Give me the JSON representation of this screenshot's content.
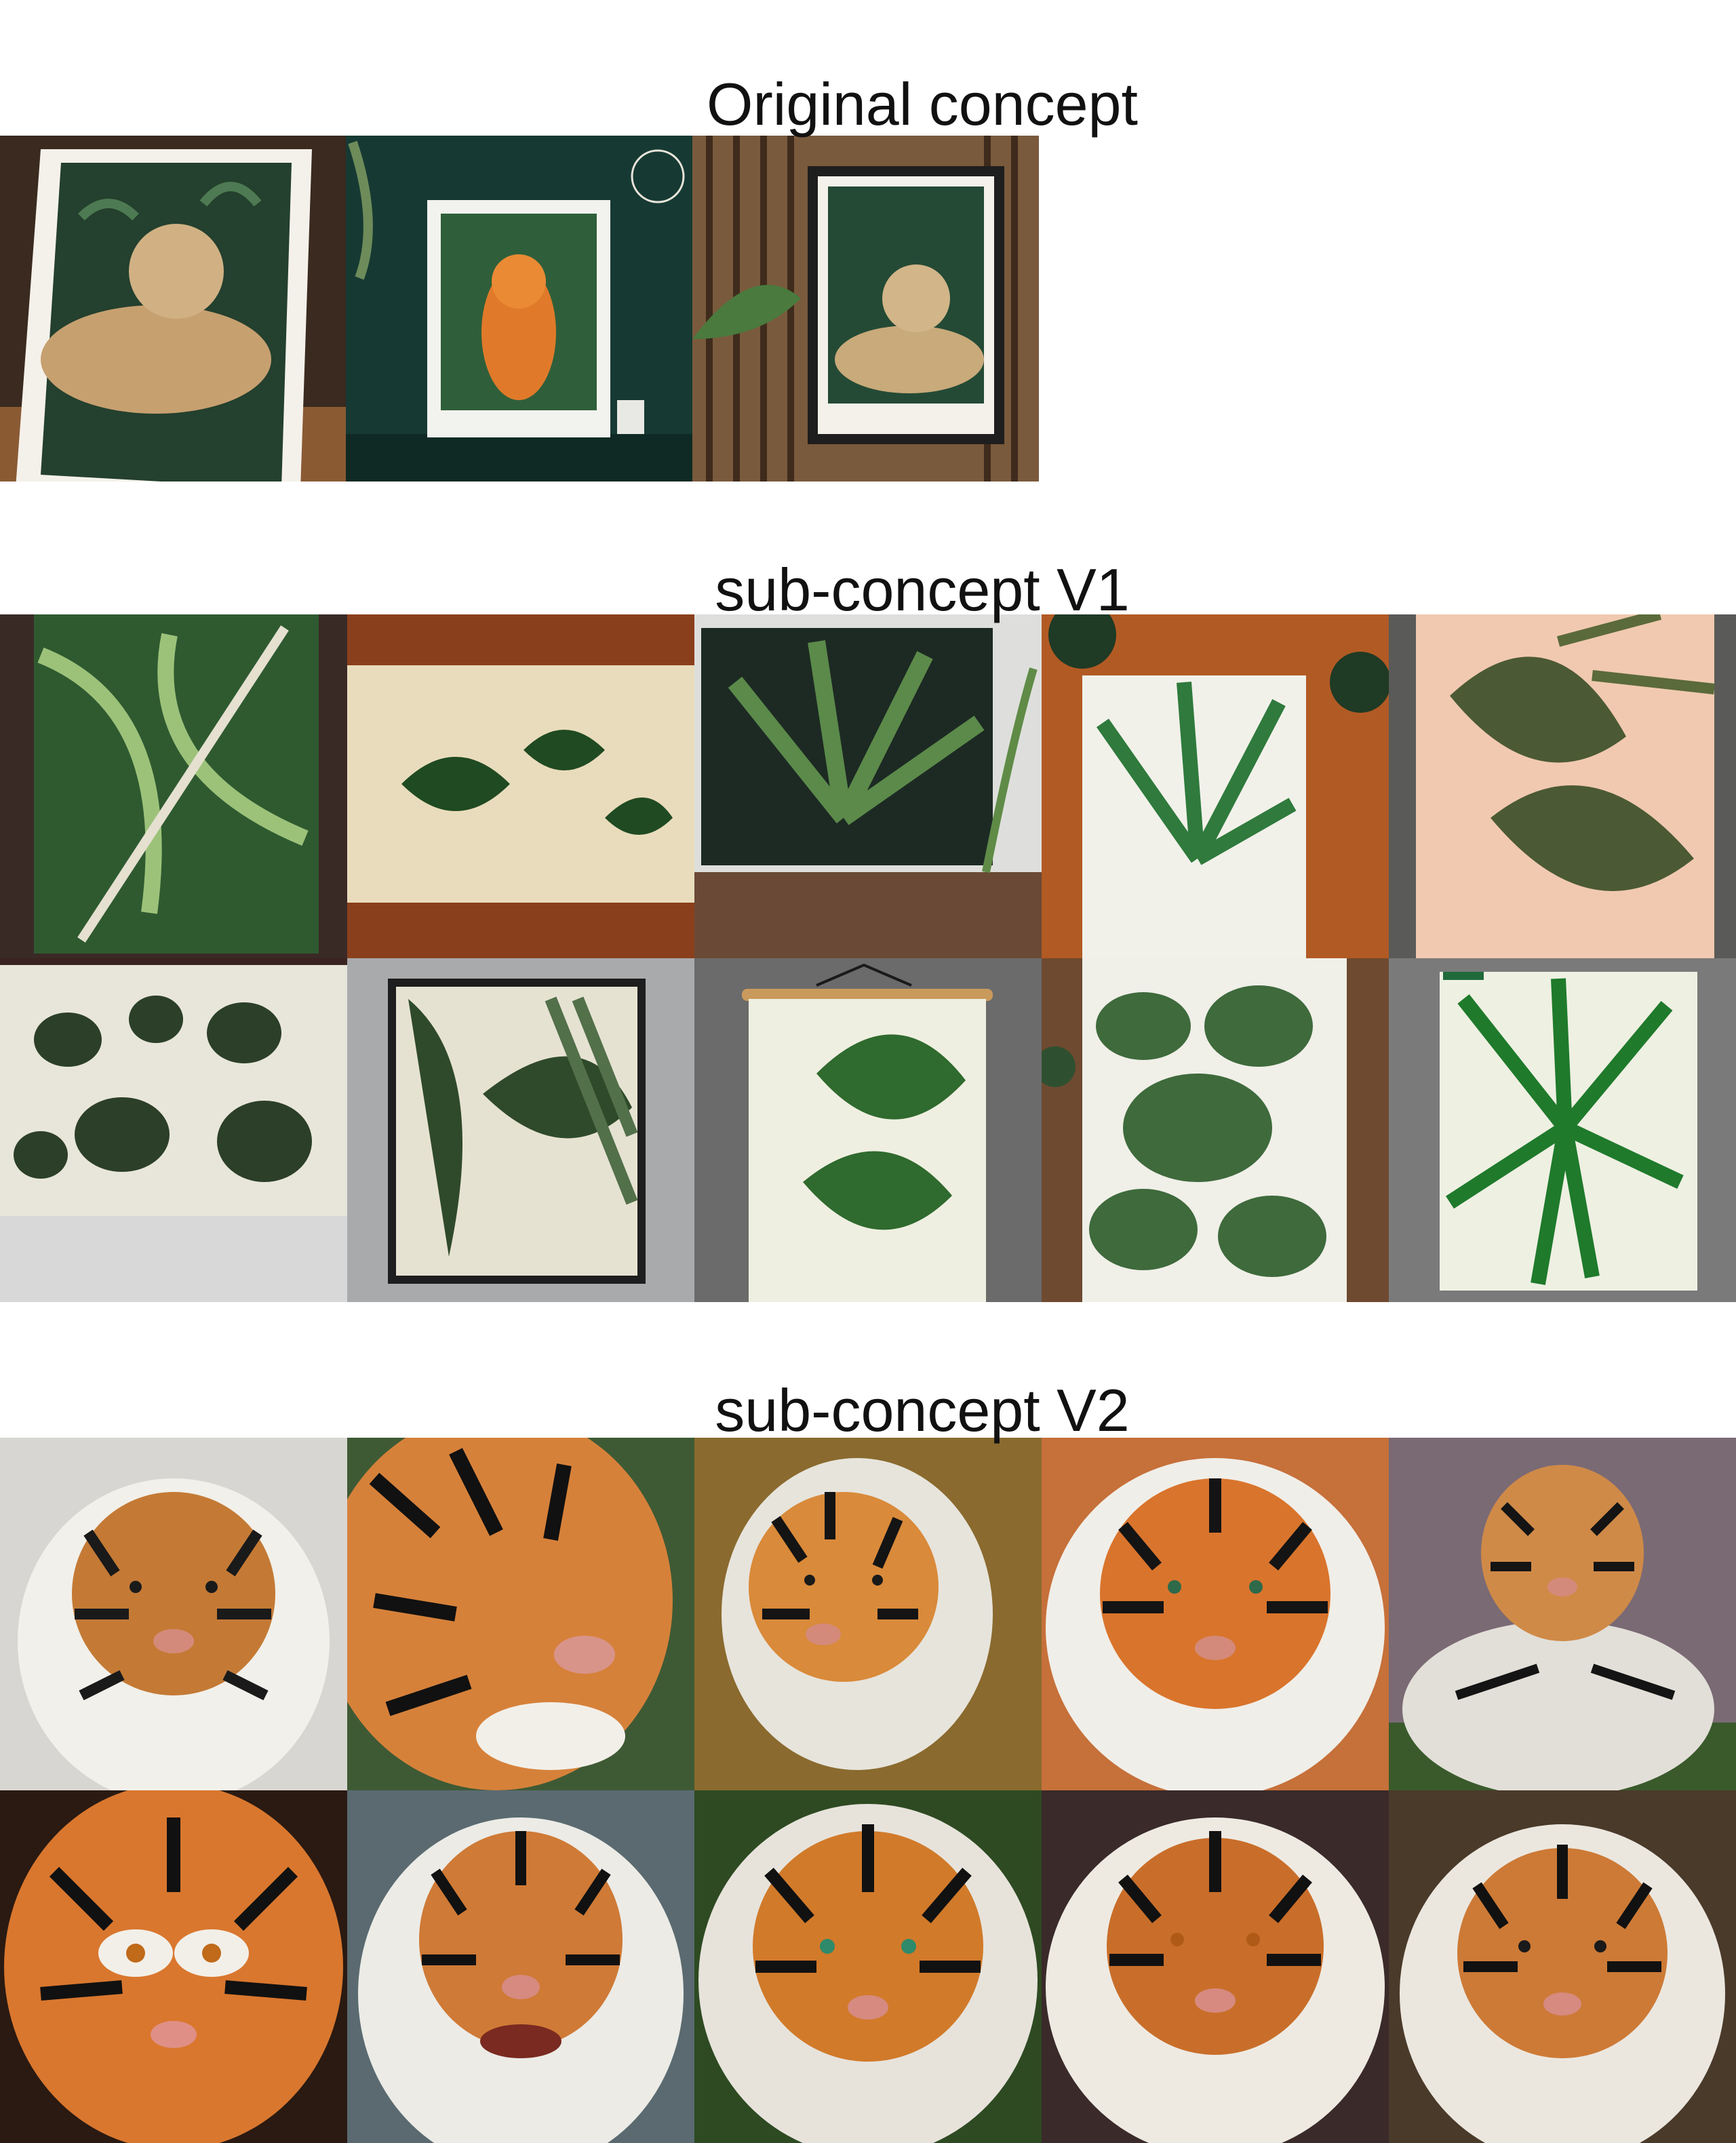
{
  "sections": [
    {
      "title": "Original concept",
      "images": [
        {
          "icon": "tiger-print-on-table-image",
          "palette": [
            "#3b2a20",
            "#24402e",
            "#c7a070"
          ]
        },
        {
          "icon": "tiger-poster-dark-green-wall-image",
          "palette": [
            "#163a33",
            "#2f5f3a",
            "#e07a2a"
          ]
        },
        {
          "icon": "framed-tiger-on-wood-slats-image",
          "palette": [
            "#7a5a3c",
            "#244a35",
            "#c9aa7a"
          ]
        }
      ]
    },
    {
      "title": "sub-concept V1",
      "images": [
        {
          "icon": "tropical-leaves-painting-image"
        },
        {
          "icon": "leaf-sketch-on-wood-wall-image"
        },
        {
          "icon": "palm-leaves-poster-image"
        },
        {
          "icon": "palm-print-on-orange-wood-image"
        },
        {
          "icon": "monstera-on-pink-background-image"
        },
        {
          "icon": "monstera-vine-mural-image"
        },
        {
          "icon": "framed-jungle-leaves-poster-image"
        },
        {
          "icon": "hanging-monstera-scroll-image"
        },
        {
          "icon": "green-leaves-print-image"
        },
        {
          "icon": "palm-leaf-print-on-concrete-image"
        }
      ]
    },
    {
      "title": "sub-concept V2",
      "images": [
        {
          "icon": "tiger-face-image-1"
        },
        {
          "icon": "tiger-face-closeup-image-2"
        },
        {
          "icon": "tiger-face-image-3"
        },
        {
          "icon": "tiger-face-image-4"
        },
        {
          "icon": "tiger-sitting-image-5"
        },
        {
          "icon": "tiger-face-image-6"
        },
        {
          "icon": "tiger-face-image-7"
        },
        {
          "icon": "tiger-face-image-8"
        },
        {
          "icon": "tiger-face-image-9"
        },
        {
          "icon": "tiger-face-image-10"
        }
      ]
    }
  ]
}
